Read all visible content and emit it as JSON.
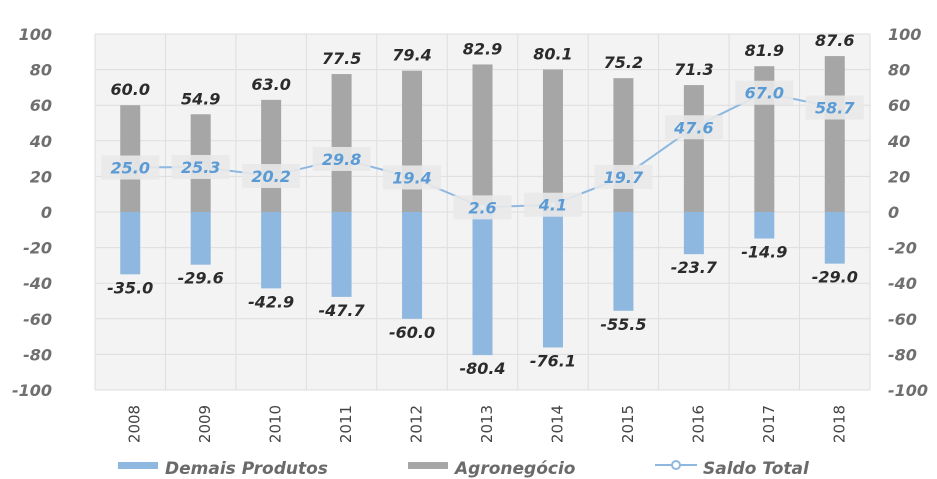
{
  "chart_data": {
    "type": "bar",
    "categories": [
      "2008",
      "2009",
      "2010",
      "2011",
      "2012",
      "2013",
      "2014",
      "2015",
      "2016",
      "2017",
      "2018"
    ],
    "series": [
      {
        "name": "Demais Produtos",
        "type": "bar",
        "color": "#8fb8e0",
        "values": [
          -35.0,
          -29.6,
          -42.9,
          -47.7,
          -60.0,
          -80.4,
          -76.1,
          -55.5,
          -23.7,
          -14.9,
          -29.0
        ]
      },
      {
        "name": "Agronegócio",
        "type": "bar",
        "color": "#a6a6a6",
        "values": [
          60.0,
          54.9,
          63.0,
          77.5,
          79.4,
          82.9,
          80.1,
          75.2,
          71.3,
          81.9,
          87.6
        ]
      },
      {
        "name": "Saldo Total",
        "type": "line",
        "color": "#8fb8e0",
        "values": [
          25.0,
          25.3,
          20.2,
          29.8,
          19.4,
          2.6,
          4.1,
          19.7,
          47.6,
          67.0,
          58.7
        ]
      }
    ],
    "ylim": [
      -100,
      100
    ],
    "yticks": [
      100,
      80,
      60,
      40,
      20,
      0,
      -20,
      -40,
      -60,
      -80,
      -100
    ],
    "grid": true,
    "legend_position": "bottom",
    "dual_axis_labels": true
  },
  "legend": {
    "demais": "Demais Produtos",
    "agro": "Agronegócio",
    "saldo": "Saldo Total"
  }
}
